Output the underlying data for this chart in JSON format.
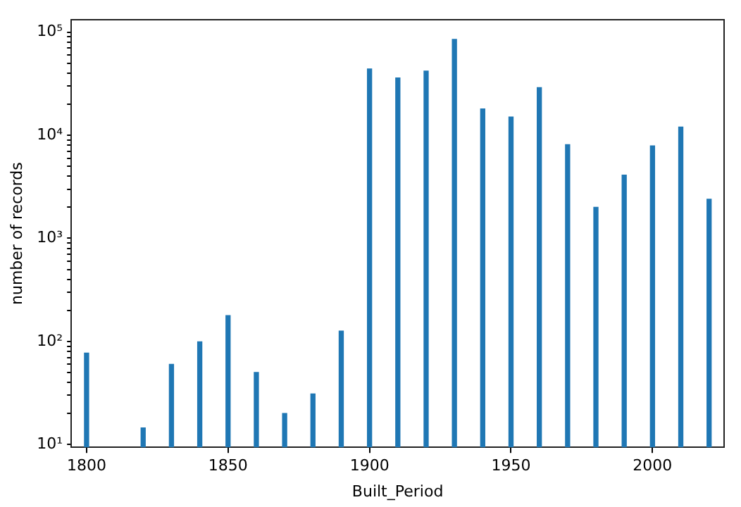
{
  "chart_data": {
    "type": "bar",
    "xlabel": "Built_Period",
    "ylabel": "number of records",
    "x": [
      1800,
      1820,
      1830,
      1840,
      1850,
      1860,
      1870,
      1880,
      1890,
      1900,
      1910,
      1920,
      1930,
      1940,
      1950,
      1960,
      1970,
      1980,
      1990,
      2000,
      2010,
      2020
    ],
    "values": [
      77,
      14.5,
      60,
      99,
      178,
      50,
      20,
      31,
      126,
      44000,
      36000,
      42000,
      85000,
      18000,
      15000,
      29000,
      8100,
      2000,
      4100,
      7900,
      12000,
      2400
    ],
    "color": "#1f77b4",
    "log": "y",
    "grid": false,
    "legend": false,
    "xlim": [
      1794.6,
      2025.3
    ],
    "xticks": [
      1800,
      1850,
      1900,
      1950,
      2000
    ],
    "ylim": [
      9.4,
      132000
    ],
    "yticks": [
      {
        "value": 10,
        "label": "10¹"
      },
      {
        "value": 20,
        "label": null
      },
      {
        "value": 30,
        "label": null
      },
      {
        "value": 40,
        "label": null
      },
      {
        "value": 50,
        "label": null
      },
      {
        "value": 60,
        "label": null
      },
      {
        "value": 70,
        "label": null
      },
      {
        "value": 80,
        "label": null
      },
      {
        "value": 90,
        "label": null
      },
      {
        "value": 100,
        "label": "10²"
      },
      {
        "value": 200,
        "label": null
      },
      {
        "value": 300,
        "label": null
      },
      {
        "value": 400,
        "label": null
      },
      {
        "value": 500,
        "label": null
      },
      {
        "value": 600,
        "label": null
      },
      {
        "value": 700,
        "label": null
      },
      {
        "value": 800,
        "label": null
      },
      {
        "value": 900,
        "label": null
      },
      {
        "value": 1000,
        "label": "10³"
      },
      {
        "value": 2000,
        "label": null
      },
      {
        "value": 3000,
        "label": null
      },
      {
        "value": 4000,
        "label": null
      },
      {
        "value": 5000,
        "label": null
      },
      {
        "value": 6000,
        "label": null
      },
      {
        "value": 7000,
        "label": null
      },
      {
        "value": 8000,
        "label": null
      },
      {
        "value": 9000,
        "label": null
      },
      {
        "value": 10000,
        "label": "10⁴"
      },
      {
        "value": 20000,
        "label": null
      },
      {
        "value": 30000,
        "label": null
      },
      {
        "value": 40000,
        "label": null
      },
      {
        "value": 50000,
        "label": null
      },
      {
        "value": 60000,
        "label": null
      },
      {
        "value": 70000,
        "label": null
      },
      {
        "value": 80000,
        "label": null
      },
      {
        "value": 90000,
        "label": null
      },
      {
        "value": 100000,
        "label": "10⁵"
      }
    ]
  }
}
